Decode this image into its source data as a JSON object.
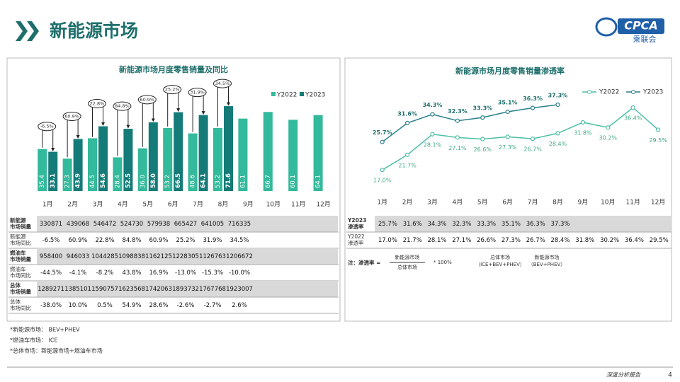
{
  "header": {
    "title": "新能源市场",
    "logo": "CPCA",
    "logo_cn": "乘联会"
  },
  "chart_data": [
    {
      "type": "bar",
      "title": "新能源市场月度零售销量及同比",
      "categories": [
        "1月",
        "2月",
        "3月",
        "4月",
        "5月",
        "6月",
        "7月",
        "8月",
        "9月",
        "10月",
        "11月",
        "12月"
      ],
      "series": [
        {
          "name": "Y2022",
          "color": "#33b99b",
          "values": [
            35.4,
            27.3,
            44.5,
            28.4,
            36.0,
            53.2,
            48.6,
            53.2,
            61.1,
            66.7,
            60.1,
            64.1
          ],
          "value_labels": [
            "35.4",
            "27.3",
            "44.5",
            "28.4",
            "36.0",
            "53.2",
            "48.6",
            "53.2",
            "61.1",
            "66.7",
            "60.1",
            "64.1"
          ]
        },
        {
          "name": "Y2023",
          "color": "#147b78",
          "values": [
            33.1,
            43.9,
            54.6,
            52.5,
            58.0,
            66.5,
            64.1,
            71.6,
            null,
            null,
            null,
            null
          ],
          "value_labels": [
            "33.1",
            "43.9",
            "54.6",
            "52.5",
            "58.0",
            "66.5",
            "64.1",
            "71.6",
            null,
            null,
            null,
            null
          ]
        }
      ],
      "annotations": [
        "-6.5%",
        "60.9%",
        "22.8%",
        "84.8%",
        "60.9%",
        "25.2%",
        "31.9%",
        "34.5%"
      ],
      "ylim": [
        0,
        80
      ]
    },
    {
      "type": "line",
      "title": "新能源市场月度零售销量渗透率",
      "categories": [
        "1月",
        "2月",
        "3月",
        "4月",
        "5月",
        "6月",
        "7月",
        "8月",
        "9月",
        "10月",
        "11月",
        "12月"
      ],
      "series": [
        {
          "name": "Y2022",
          "color": "#4dbfa6",
          "values": [
            17.0,
            21.7,
            28.1,
            27.1,
            26.6,
            27.3,
            26.7,
            28.4,
            31.8,
            30.2,
            36.4,
            29.5
          ],
          "value_labels": [
            "17.0%",
            "21.7%",
            "28.1%",
            "27.1%",
            "26.6%",
            "27.3%",
            "26.7%",
            "28.4%",
            "31.8%",
            "30.2%",
            "36.4%",
            "29.5%"
          ]
        },
        {
          "name": "Y2023",
          "color": "#2a7f8c",
          "values": [
            25.7,
            31.6,
            34.3,
            32.3,
            33.3,
            35.1,
            36.3,
            37.3,
            null,
            null,
            null,
            null
          ],
          "value_labels": [
            "25.7%",
            "31.6%",
            "34.3%",
            "32.3%",
            "33.3%",
            "35.1%",
            "36.3%",
            "37.3%",
            null,
            null,
            null,
            null
          ]
        }
      ],
      "ylim": [
        10,
        45
      ]
    }
  ],
  "tables": [
    {
      "rows": [
        {
          "label": [
            "新能源",
            "市场销量"
          ],
          "cells": [
            "330871",
            "439068",
            "546472",
            "524730",
            "579938",
            "665427",
            "641005",
            "716335"
          ]
        },
        {
          "label": [
            "新能源",
            "市场同比"
          ],
          "cells": [
            "-6.5%",
            "60.9%",
            "22.8%",
            "84.8%",
            "60.9%",
            "25.2%",
            "31.9%",
            "34.5%"
          ]
        },
        {
          "label": [
            "燃油车",
            "市场销量"
          ],
          "cells": [
            "958400",
            "946033",
            "1044285",
            "1098838",
            "1162125",
            "1228305",
            "1126763",
            "1206672"
          ]
        },
        {
          "label": [
            "燃油车",
            "市场同比"
          ],
          "cells": [
            "-44.5%",
            "-4.1%",
            "-8.2%",
            "43.8%",
            "16.9%",
            "-13.0%",
            "-15.3%",
            "-10.0%"
          ]
        },
        {
          "label": [
            "总体",
            "市场销量"
          ],
          "cells": [
            "1289271",
            "1385101",
            "1590757",
            "1623568",
            "1742063",
            "1893732",
            "1767768",
            "1923007"
          ]
        },
        {
          "label": [
            "总体",
            "市场同比"
          ],
          "cells": [
            "-38.0%",
            "10.0%",
            "0.5%",
            "54.9%",
            "28.6%",
            "-2.6%",
            "-2.7%",
            "2.6%"
          ]
        }
      ]
    },
    {
      "rows": [
        {
          "label": [
            "Y2023",
            "渗透率"
          ],
          "cells": [
            "25.7%",
            "31.6%",
            "34.3%",
            "32.3%",
            "33.3%",
            "35.1%",
            "36.3%",
            "37.3%"
          ]
        },
        {
          "label": [
            "Y2022",
            "渗透率"
          ],
          "cells": [
            "17.0%",
            "21.7%",
            "28.1%",
            "27.1%",
            "26.6%",
            "27.3%",
            "26.7%",
            "28.4%",
            "31.8%",
            "30.2%",
            "36.4%",
            "29.5%"
          ]
        }
      ]
    }
  ],
  "note": {
    "prefix": "注：渗透率 =",
    "numerator": "新能源市场",
    "denominator": "总体市场",
    "times": "* 100%",
    "def1": [
      "总体市场",
      "（ICE+BEV+PHEV）"
    ],
    "def2": [
      "新能源市场",
      "（BEV+PHEV）"
    ]
  },
  "footnotes": [
    "*新能源市场：  BEV+PHEV",
    "*燃油车市场：  ICE",
    "*总体市场：新能源市场+燃油车市场"
  ],
  "footer": {
    "report": "深度分析报告",
    "page": "4"
  }
}
